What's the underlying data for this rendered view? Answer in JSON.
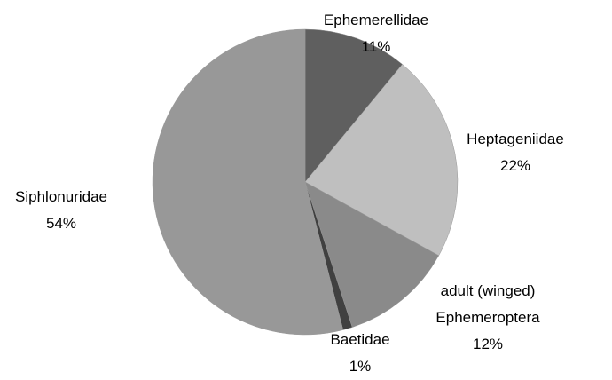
{
  "chart_data": {
    "type": "pie",
    "categories": [
      "Ephemerellidae",
      "Heptageniidae",
      "adult (winged) Ephemeroptera",
      "Baetidae",
      "Siphlonuridae"
    ],
    "values": [
      11,
      22,
      12,
      1,
      54
    ],
    "value_labels": [
      "11%",
      "22%",
      "12%",
      "1%",
      "54%"
    ],
    "colors": [
      "#5f5f5f",
      "#bfbfbf",
      "#8a8a8a",
      "#404040",
      "#989898"
    ]
  }
}
